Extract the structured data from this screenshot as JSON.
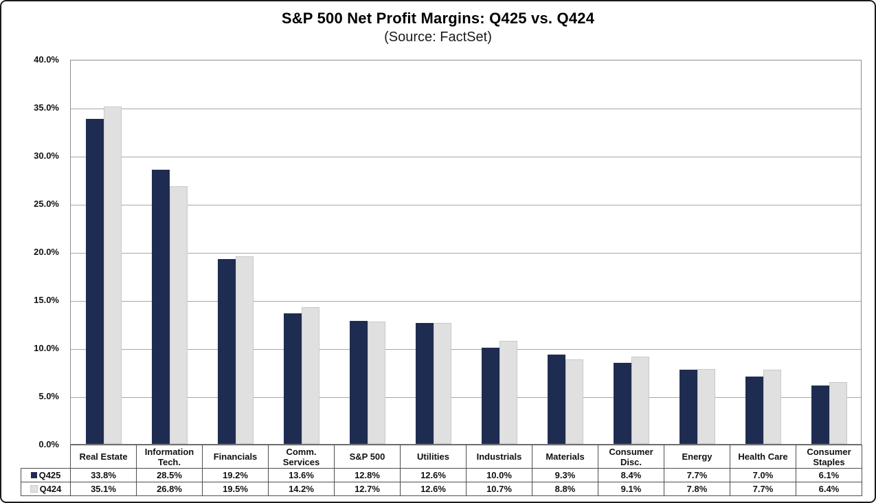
{
  "title": "S&P 500 Net Profit Margins: Q425 vs. Q424",
  "subtitle": "(Source: FactSet)",
  "chart_data": {
    "type": "bar",
    "title": "S&P 500 Net Profit Margins: Q425 vs. Q424",
    "subtitle": "(Source: FactSet)",
    "categories": [
      "Real Estate",
      "Information Tech.",
      "Financials",
      "Comm. Services",
      "S&P 500",
      "Utilities",
      "Industrials",
      "Materials",
      "Consumer Disc.",
      "Energy",
      "Health Care",
      "Consumer Staples"
    ],
    "series": [
      {
        "name": "Q425",
        "color": "#1f2c52",
        "values": [
          33.8,
          28.5,
          19.2,
          13.6,
          12.8,
          12.6,
          10.0,
          9.3,
          8.4,
          7.7,
          7.0,
          6.1
        ]
      },
      {
        "name": "Q424",
        "color": "#e0e0e0",
        "values": [
          35.1,
          26.8,
          19.5,
          14.2,
          12.7,
          12.6,
          10.7,
          8.8,
          9.1,
          7.8,
          7.7,
          6.4
        ]
      }
    ],
    "ylim": [
      0,
      40
    ],
    "ytick_step": 5,
    "ytick_labels": [
      "40.0%",
      "35.0%",
      "30.0%",
      "25.0%",
      "20.0%",
      "15.0%",
      "10.0%",
      "5.0%",
      "0.0%"
    ],
    "grid": true,
    "legend_position": "bottom-left table rows",
    "value_format": "one decimal place with % sign"
  },
  "colors": {
    "q425_bar": "#1f2c52",
    "q424_bar": "#e0e0e0",
    "gridline": "#a6a6a6",
    "plot_border": "#8c8c8c",
    "table_border": "#4d4d4d",
    "text": "#111111"
  }
}
